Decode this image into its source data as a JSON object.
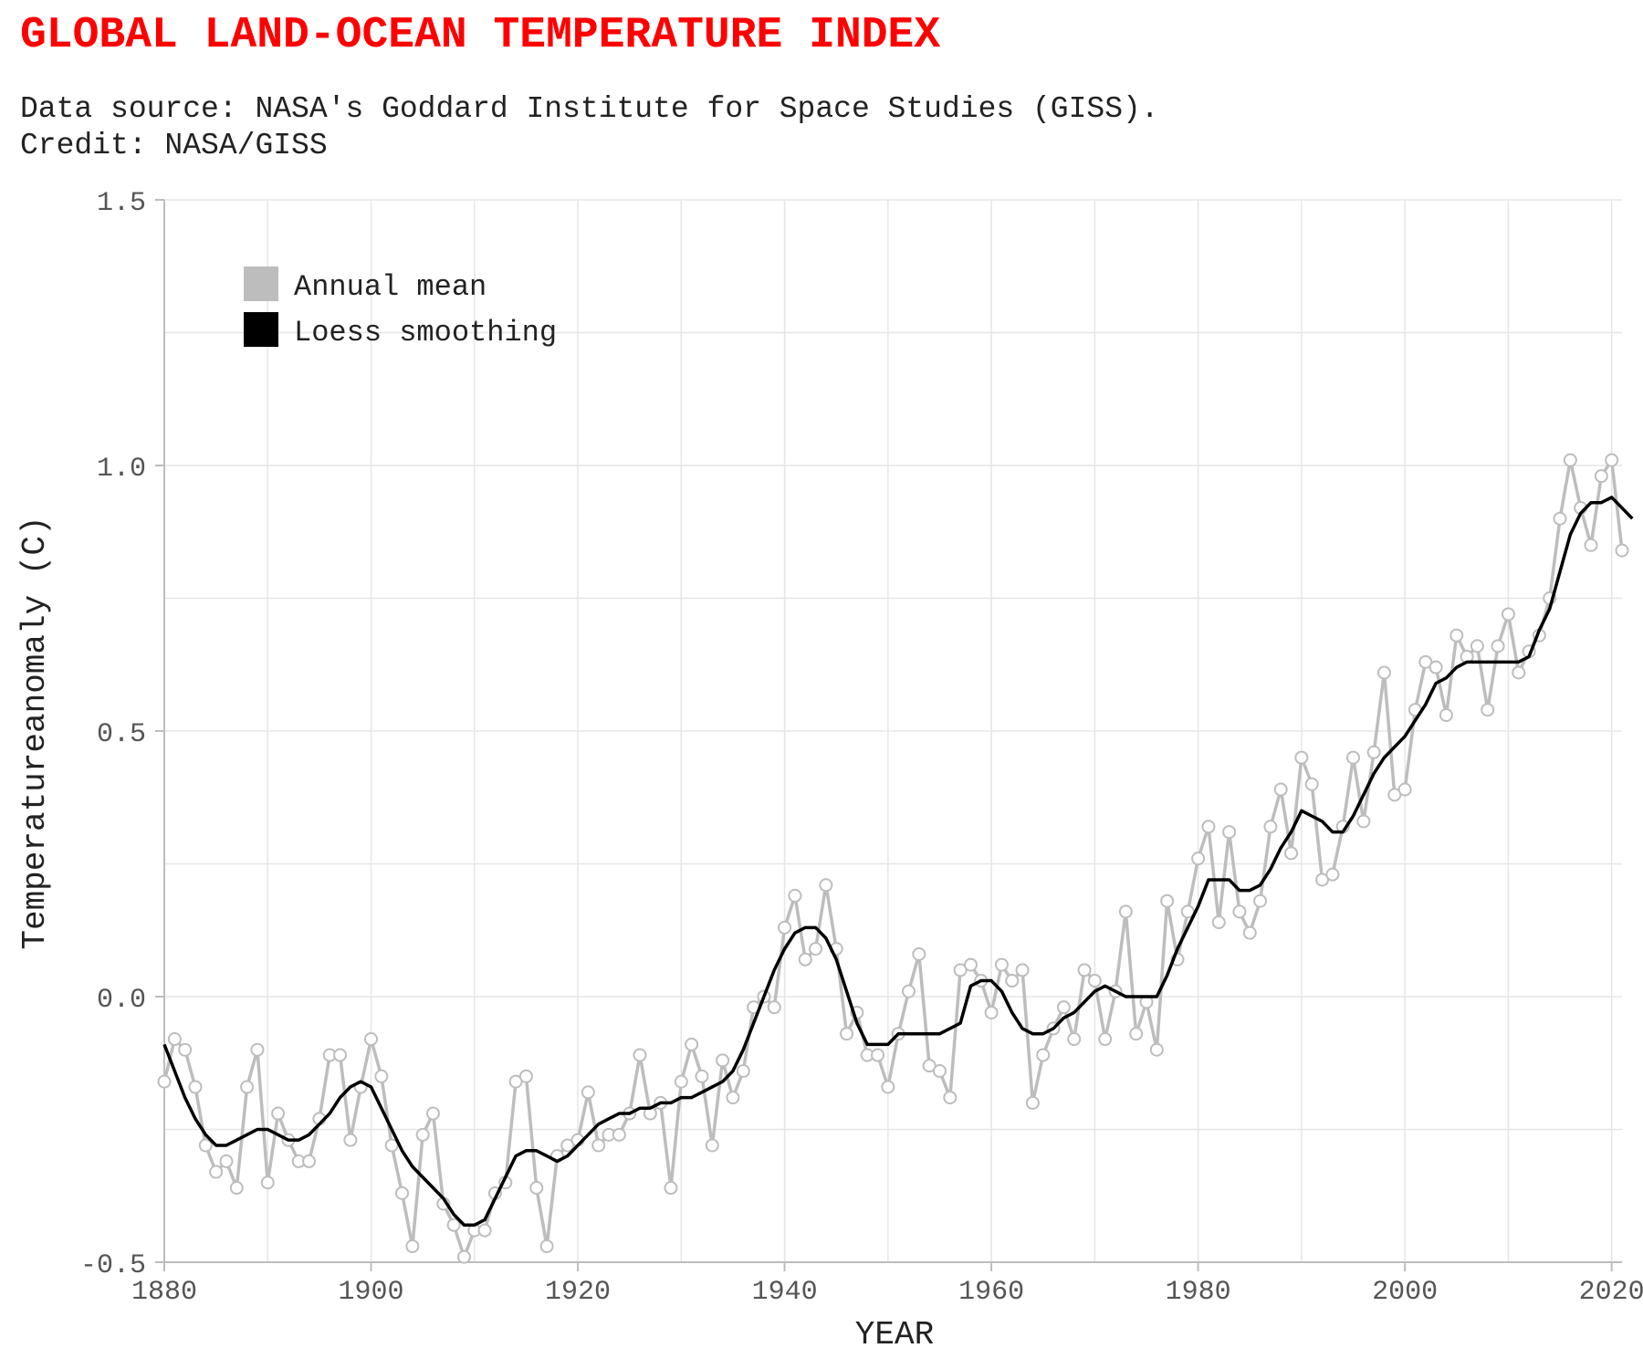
{
  "header": {
    "title": "GLOBAL LAND-OCEAN TEMPERATURE INDEX",
    "source_line": "Data source: NASA's Goddard Institute for Space Studies (GISS).",
    "credit_line": "Credit: NASA/GISS"
  },
  "chart_data": {
    "type": "line",
    "xlabel": "YEAR",
    "ylabel": "Temperatureanomaly (C)",
    "xlim": [
      1880,
      2021
    ],
    "ylim": [
      -0.5,
      1.5
    ],
    "xticks": [
      1880,
      1900,
      1920,
      1940,
      1960,
      1980,
      2000,
      2020
    ],
    "yticks": [
      -0.5,
      0.0,
      0.5,
      1.0,
      1.5
    ],
    "ytick_labels": [
      "-0.5",
      "0.0",
      "0.5",
      "1.0",
      "1.5"
    ],
    "grid": true,
    "legend_position": "top-left",
    "colors": {
      "annual": "#bdbdbd",
      "smooth": "#000000",
      "grid": "#e6e6e6",
      "axis": "#bdbdbd",
      "tick_text": "#555555"
    },
    "series": [
      {
        "name": "Annual mean",
        "x_start": 1880,
        "values": [
          -0.16,
          -0.08,
          -0.1,
          -0.17,
          -0.28,
          -0.33,
          -0.31,
          -0.36,
          -0.17,
          -0.1,
          -0.35,
          -0.22,
          -0.27,
          -0.31,
          -0.31,
          -0.23,
          -0.11,
          -0.11,
          -0.27,
          -0.17,
          -0.08,
          -0.15,
          -0.28,
          -0.37,
          -0.47,
          -0.26,
          -0.22,
          -0.39,
          -0.43,
          -0.49,
          -0.44,
          -0.44,
          -0.37,
          -0.35,
          -0.16,
          -0.15,
          -0.36,
          -0.47,
          -0.3,
          -0.28,
          -0.27,
          -0.18,
          -0.28,
          -0.26,
          -0.26,
          -0.22,
          -0.11,
          -0.22,
          -0.2,
          -0.36,
          -0.16,
          -0.09,
          -0.15,
          -0.28,
          -0.12,
          -0.19,
          -0.14,
          -0.02,
          0.0,
          -0.02,
          0.13,
          0.19,
          0.07,
          0.09,
          0.21,
          0.09,
          -0.07,
          -0.03,
          -0.11,
          -0.11,
          -0.17,
          -0.07,
          0.01,
          0.08,
          -0.13,
          -0.14,
          -0.19,
          0.05,
          0.06,
          0.03,
          -0.03,
          0.06,
          0.03,
          0.05,
          -0.2,
          -0.11,
          -0.06,
          -0.02,
          -0.08,
          0.05,
          0.03,
          -0.08,
          0.01,
          0.16,
          -0.07,
          -0.01,
          -0.1,
          0.18,
          0.07,
          0.16,
          0.26,
          0.32,
          0.14,
          0.31,
          0.16,
          0.12,
          0.18,
          0.32,
          0.39,
          0.27,
          0.45,
          0.4,
          0.22,
          0.23,
          0.32,
          0.45,
          0.33,
          0.46,
          0.61,
          0.38,
          0.39,
          0.54,
          0.63,
          0.62,
          0.53,
          0.68,
          0.64,
          0.66,
          0.54,
          0.66,
          0.72,
          0.61,
          0.65,
          0.68,
          0.75,
          0.9,
          1.01,
          0.92,
          0.85,
          0.98,
          1.01,
          0.84
        ]
      },
      {
        "name": "Loess smoothing",
        "x_start": 1880,
        "values": [
          -0.09,
          -0.14,
          -0.19,
          -0.23,
          -0.26,
          -0.28,
          -0.28,
          -0.27,
          -0.26,
          -0.25,
          -0.25,
          -0.26,
          -0.27,
          -0.27,
          -0.26,
          -0.24,
          -0.22,
          -0.19,
          -0.17,
          -0.16,
          -0.17,
          -0.21,
          -0.25,
          -0.29,
          -0.32,
          -0.34,
          -0.36,
          -0.38,
          -0.41,
          -0.43,
          -0.43,
          -0.42,
          -0.38,
          -0.34,
          -0.3,
          -0.29,
          -0.29,
          -0.3,
          -0.31,
          -0.3,
          -0.28,
          -0.26,
          -0.24,
          -0.23,
          -0.22,
          -0.22,
          -0.21,
          -0.21,
          -0.2,
          -0.2,
          -0.19,
          -0.19,
          -0.18,
          -0.17,
          -0.16,
          -0.14,
          -0.1,
          -0.05,
          0.0,
          0.05,
          0.09,
          0.12,
          0.13,
          0.13,
          0.11,
          0.07,
          0.01,
          -0.05,
          -0.09,
          -0.09,
          -0.09,
          -0.07,
          -0.07,
          -0.07,
          -0.07,
          -0.07,
          -0.06,
          -0.05,
          0.02,
          0.03,
          0.03,
          0.01,
          -0.03,
          -0.06,
          -0.07,
          -0.07,
          -0.06,
          -0.04,
          -0.03,
          -0.01,
          0.01,
          0.02,
          0.01,
          0.0,
          0.0,
          0.0,
          0.0,
          0.04,
          0.09,
          0.13,
          0.17,
          0.22,
          0.22,
          0.22,
          0.2,
          0.2,
          0.21,
          0.24,
          0.28,
          0.31,
          0.35,
          0.34,
          0.33,
          0.31,
          0.31,
          0.34,
          0.38,
          0.42,
          0.45,
          0.47,
          0.49,
          0.52,
          0.55,
          0.59,
          0.6,
          0.62,
          0.63,
          0.63,
          0.63,
          0.63,
          0.63,
          0.63,
          0.64,
          0.69,
          0.73,
          0.8,
          0.87,
          0.91,
          0.93,
          0.93,
          0.94,
          0.92,
          0.9
        ]
      }
    ]
  }
}
